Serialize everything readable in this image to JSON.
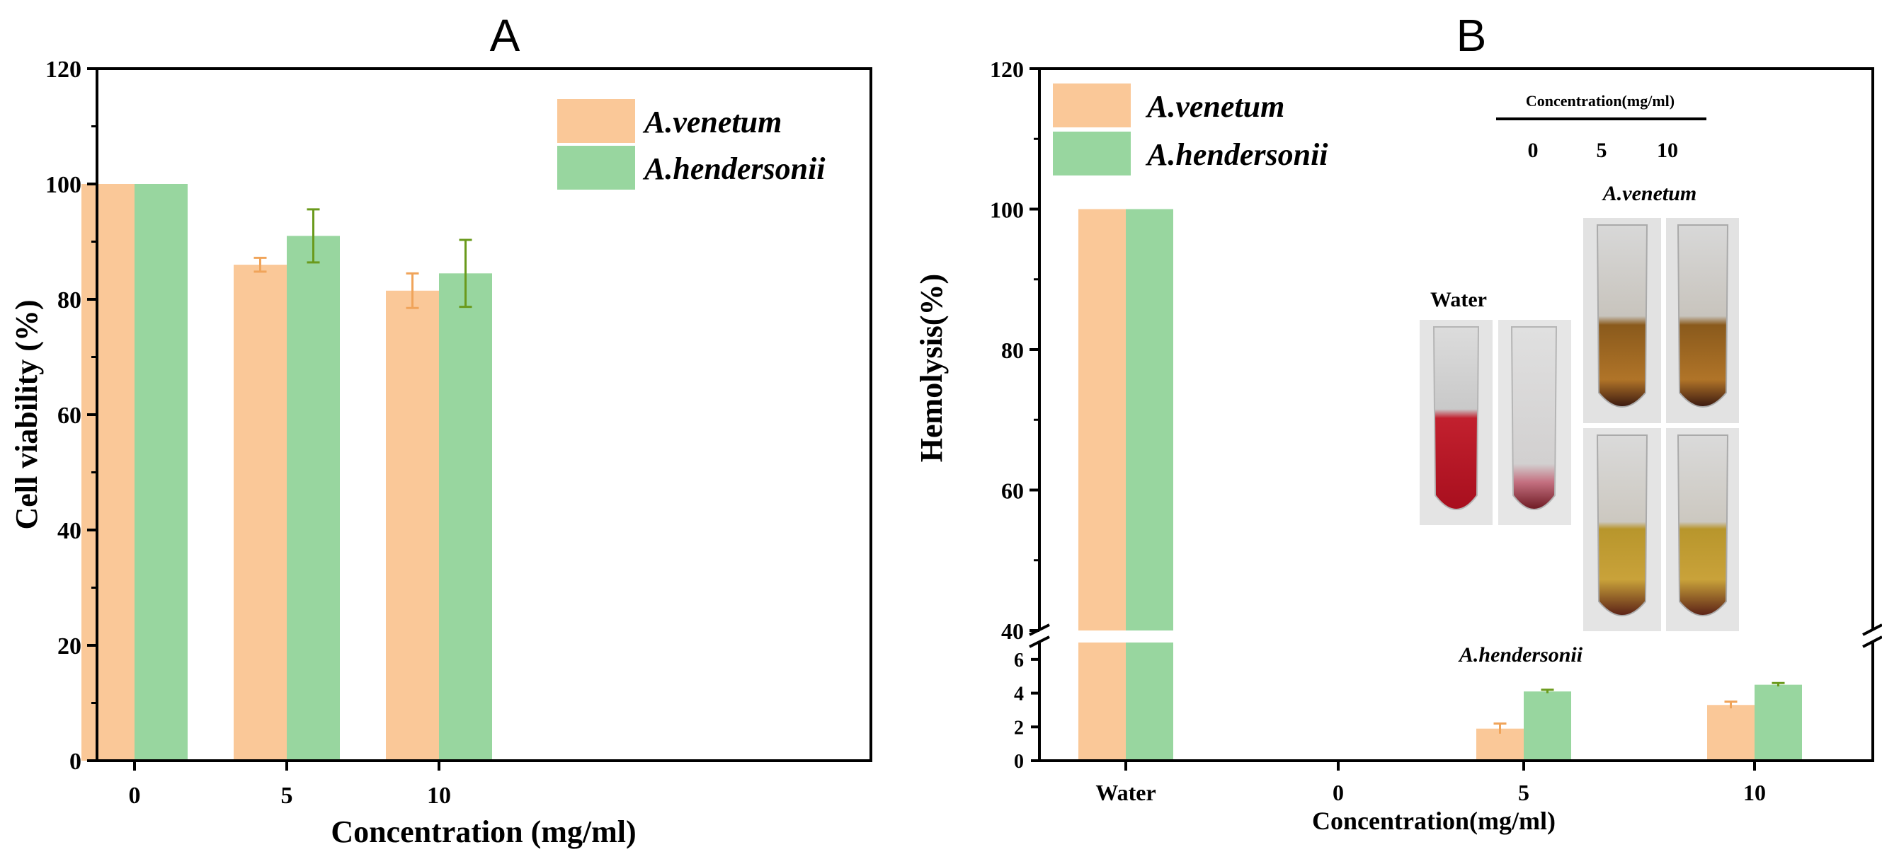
{
  "chart_data": [
    {
      "panel_label": "A",
      "type": "bar",
      "title": "A",
      "xlabel": "Concentration (mg/ml)",
      "ylabel": "Cell viability (%)",
      "categories": [
        "0",
        "5",
        "10"
      ],
      "ylim": [
        0,
        120
      ],
      "yticks": [
        "0",
        "20",
        "40",
        "60",
        "80",
        "100",
        "120"
      ],
      "series": [
        {
          "name": "A.venetum",
          "color": "#fac898",
          "values": [
            100,
            86,
            81.5
          ],
          "errors": [
            0,
            1.2,
            3.0
          ],
          "error_color": "#f0a45a"
        },
        {
          "name": "A.hendersonii",
          "color": "#98d69f",
          "values": [
            100,
            91,
            84.5
          ],
          "errors": [
            0,
            4.6,
            5.8
          ],
          "error_color": "#6a9a1c"
        }
      ],
      "legend": "top-right"
    },
    {
      "panel_label": "B",
      "type": "bar",
      "title": "B",
      "xlabel": "Concentration(mg/ml)",
      "ylabel": "Hemolysis(%)",
      "categories": [
        "Water",
        "0",
        "5",
        "10"
      ],
      "axis_break": true,
      "lower_ylim": [
        0,
        7
      ],
      "upper_ylim": [
        40,
        120
      ],
      "lower_yticks": [
        "0",
        "2",
        "4",
        "6"
      ],
      "upper_yticks": [
        "40",
        "60",
        "80",
        "100",
        "120"
      ],
      "series": [
        {
          "name": "A.venetum",
          "color": "#fac898",
          "values": [
            100,
            0,
            1.9,
            3.3
          ],
          "errors": [
            0,
            0,
            0.3,
            0.2
          ],
          "error_color": "#f0a45a"
        },
        {
          "name": "A.hendersonii",
          "color": "#98d69f",
          "values": [
            100,
            0,
            4.1,
            4.5
          ],
          "errors": [
            0,
            0,
            0.1,
            0.1
          ],
          "error_color": "#6a9a1c"
        }
      ],
      "legend": "top-left",
      "inset": {
        "header": "Concentration(mg/ml)",
        "concentrations": [
          "0",
          "5",
          "10"
        ],
        "water_label": "Water",
        "row1_label": "A.venetum",
        "row2_label": "A.hendersonii"
      }
    }
  ]
}
